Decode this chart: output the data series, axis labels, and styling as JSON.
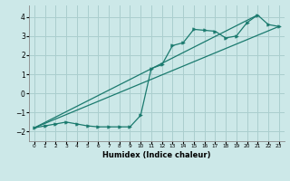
{
  "xlabel": "Humidex (Indice chaleur)",
  "xlim": [
    -0.5,
    23.5
  ],
  "ylim": [
    -2.5,
    4.6
  ],
  "xticks": [
    0,
    1,
    2,
    3,
    4,
    5,
    6,
    7,
    8,
    9,
    10,
    11,
    12,
    13,
    14,
    15,
    16,
    17,
    18,
    19,
    20,
    21,
    22,
    23
  ],
  "yticks": [
    -2,
    -1,
    0,
    1,
    2,
    3,
    4
  ],
  "bg_color": "#cce8e8",
  "line_color": "#1a7a6e",
  "grid_color": "#aacece",
  "line1_x": [
    0,
    1,
    2,
    3,
    4,
    5,
    6,
    7,
    8,
    9,
    10,
    11,
    12,
    13,
    14,
    15,
    16,
    17,
    18,
    19,
    20,
    21,
    22,
    23
  ],
  "line1_y": [
    -1.8,
    -1.7,
    -1.6,
    -1.5,
    -1.6,
    -1.7,
    -1.75,
    -1.75,
    -1.75,
    -1.75,
    -1.15,
    1.3,
    1.5,
    2.5,
    2.65,
    3.35,
    3.3,
    3.25,
    2.9,
    3.0,
    3.7,
    4.1,
    3.6,
    3.5
  ],
  "line2_x": [
    0,
    21
  ],
  "line2_y": [
    -1.8,
    4.1
  ],
  "line3_x": [
    0,
    23
  ],
  "line3_y": [
    -1.8,
    3.5
  ]
}
